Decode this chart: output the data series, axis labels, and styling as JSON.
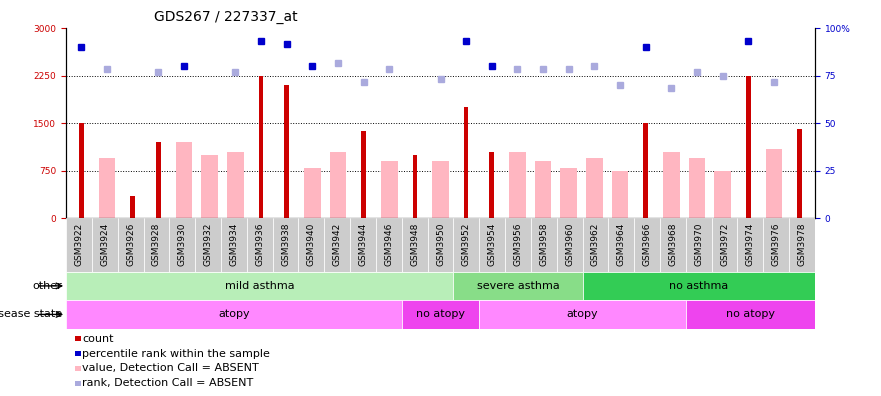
{
  "title": "GDS267 / 227337_at",
  "samples": [
    "GSM3922",
    "GSM3924",
    "GSM3926",
    "GSM3928",
    "GSM3930",
    "GSM3932",
    "GSM3934",
    "GSM3936",
    "GSM3938",
    "GSM3940",
    "GSM3942",
    "GSM3944",
    "GSM3946",
    "GSM3948",
    "GSM3950",
    "GSM3952",
    "GSM3954",
    "GSM3956",
    "GSM3958",
    "GSM3960",
    "GSM3962",
    "GSM3964",
    "GSM3966",
    "GSM3968",
    "GSM3970",
    "GSM3972",
    "GSM3974",
    "GSM3976",
    "GSM3978"
  ],
  "red_bars": [
    1500,
    0,
    350,
    1200,
    0,
    0,
    0,
    2250,
    2100,
    0,
    0,
    1380,
    0,
    1000,
    0,
    1750,
    1050,
    0,
    0,
    0,
    0,
    0,
    1500,
    0,
    0,
    0,
    2250,
    0,
    1400
  ],
  "pink_bars": [
    0,
    950,
    0,
    0,
    1200,
    1000,
    1050,
    0,
    0,
    800,
    1050,
    0,
    900,
    0,
    900,
    0,
    0,
    1050,
    900,
    800,
    950,
    750,
    0,
    1050,
    950,
    750,
    0,
    1100,
    0
  ],
  "blue_squares": [
    2700,
    0,
    0,
    0,
    2400,
    0,
    0,
    2800,
    2750,
    2400,
    0,
    0,
    0,
    0,
    0,
    2800,
    2400,
    0,
    0,
    0,
    0,
    0,
    2700,
    0,
    0,
    0,
    2800,
    0,
    0
  ],
  "lavender_squares": [
    0,
    2350,
    0,
    2300,
    0,
    0,
    2300,
    0,
    0,
    0,
    2450,
    2150,
    2350,
    0,
    2200,
    0,
    0,
    2350,
    2350,
    2350,
    2400,
    2100,
    0,
    2050,
    2300,
    2250,
    0,
    2150,
    0
  ],
  "ylim_left": [
    0,
    3000
  ],
  "ylim_right": [
    0,
    100
  ],
  "yticks_left": [
    0,
    750,
    1500,
    2250,
    3000
  ],
  "yticks_right": [
    0,
    25,
    50,
    75,
    100
  ],
  "other_groups": [
    {
      "label": "mild asthma",
      "start": 0,
      "end": 14,
      "color": "#B8EEB8"
    },
    {
      "label": "severe asthma",
      "start": 15,
      "end": 19,
      "color": "#88DD88"
    },
    {
      "label": "no asthma",
      "start": 20,
      "end": 28,
      "color": "#33CC55"
    }
  ],
  "disease_groups": [
    {
      "label": "atopy",
      "start": 0,
      "end": 12,
      "color": "#FF88FF"
    },
    {
      "label": "no atopy",
      "start": 13,
      "end": 15,
      "color": "#EE44EE"
    },
    {
      "label": "atopy",
      "start": 16,
      "end": 23,
      "color": "#FF88FF"
    },
    {
      "label": "no atopy",
      "start": 24,
      "end": 28,
      "color": "#EE44EE"
    }
  ],
  "red_color": "#CC0000",
  "pink_color": "#FFB6C1",
  "blue_color": "#0000CC",
  "lavender_color": "#AAAADD",
  "title_fontsize": 10,
  "tick_fontsize": 6.5,
  "label_fontsize": 8,
  "legend_fontsize": 8
}
